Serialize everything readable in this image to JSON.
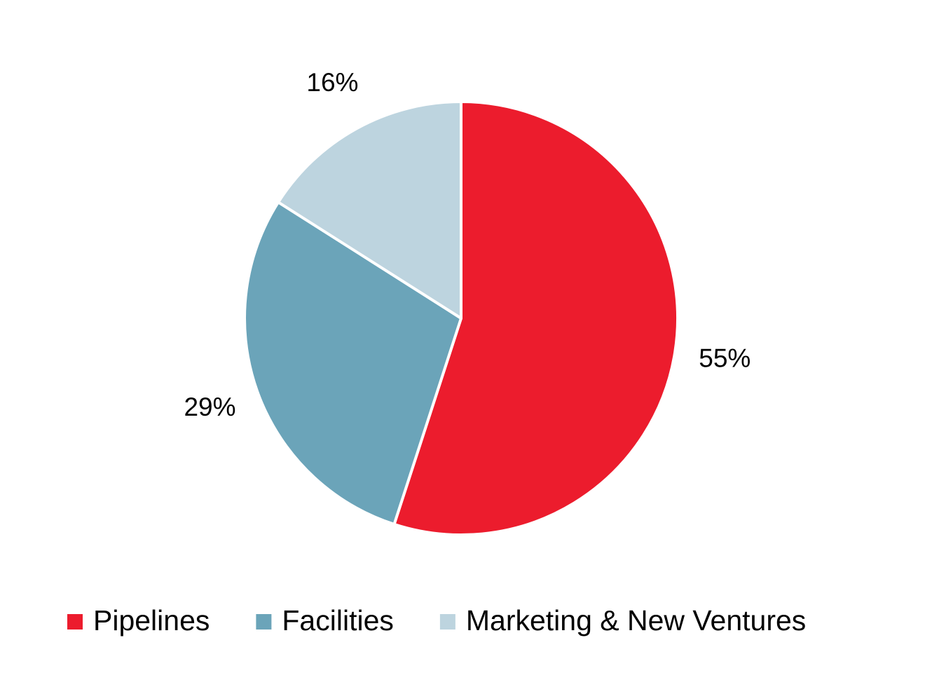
{
  "chart_data": {
    "type": "pie",
    "categories": [
      "Pipelines",
      "Facilities",
      "Marketing & New Ventures"
    ],
    "values": [
      55,
      29,
      16
    ],
    "value_labels": [
      "55%",
      "29%",
      "16%"
    ],
    "colors": [
      "#ec1c2d",
      "#6ba4b9",
      "#bdd4df"
    ]
  }
}
